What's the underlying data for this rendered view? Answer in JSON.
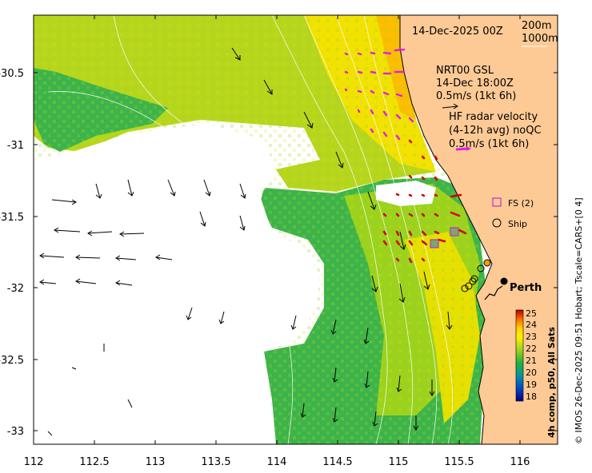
{
  "date_label": "14-Dec-2025 00Z",
  "contours": {
    "label_200": "200m",
    "label_1000": "1000m"
  },
  "model": {
    "name": "NRT00 GSL",
    "time": "14-Dec 18:00Z",
    "scale": "0.5m/s (1kt 6h)"
  },
  "hf_radar": {
    "title_line1": "HF radar velocity",
    "title_line2": "(4-12h avg) noQC",
    "scale": "0.5m/s (1kt 6h)"
  },
  "legend": {
    "fs_label": "FS (2)",
    "ship_label": "Ship"
  },
  "place": {
    "perth": "Perth"
  },
  "colorbar": {
    "ticks": [
      "25",
      "24",
      "23",
      "22",
      "21",
      "20",
      "19",
      "18"
    ],
    "title": "4h comp, p50, All Sats",
    "colors": [
      "#b40000",
      "#ff6a00",
      "#ffd200",
      "#fff000",
      "#9bd21e",
      "#1eb43c",
      "#0096a0",
      "#0046c8",
      "#000080"
    ]
  },
  "credit": "© IMOS 26-Dec-2025 09:51 Hobart; Tscale=CARS+[0 4]",
  "axes": {
    "x_ticks": [
      "112",
      "112.5",
      "113",
      "113.5",
      "114",
      "114.5",
      "115",
      "115.5",
      "116"
    ],
    "y_ticks": [
      "-30.5",
      "-31",
      "-31.5",
      "-32",
      "-32.5",
      "-33"
    ]
  },
  "colors": {
    "land": "#fdca96",
    "sst_warm": "#f2e200",
    "sst_mid": "#b6d61e",
    "sst_cool": "#3cb44b",
    "hf_arrow_magenta": "#e020e0",
    "hf_arrow_red": "#d00000",
    "fs_marker": "#c030c0"
  }
}
